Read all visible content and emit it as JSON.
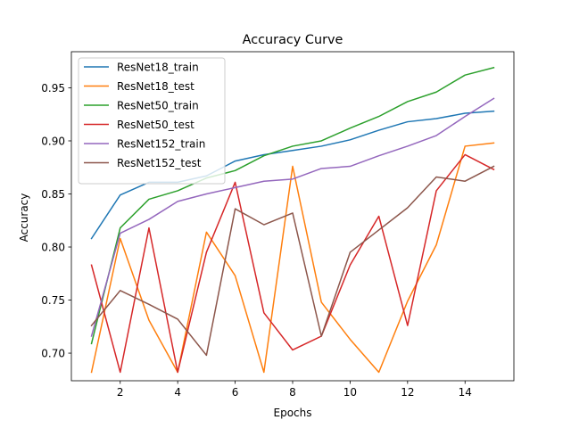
{
  "chart_data": {
    "type": "line",
    "title": "Accuracy Curve",
    "xlabel": "Epochs",
    "ylabel": "Accuracy",
    "xlim": [
      0.3,
      15.7
    ],
    "ylim": [
      0.674,
      0.984
    ],
    "xticks": [
      2,
      4,
      6,
      8,
      10,
      12,
      14
    ],
    "xtick_labels": [
      "2",
      "4",
      "6",
      "8",
      "10",
      "12",
      "14"
    ],
    "yticks": [
      0.7,
      0.75,
      0.8,
      0.85,
      0.9,
      0.95
    ],
    "ytick_labels": [
      "0.70",
      "0.75",
      "0.80",
      "0.85",
      "0.90",
      "0.95"
    ],
    "grid": false,
    "legend_position": "upper-left",
    "x": [
      1,
      2,
      3,
      4,
      5,
      6,
      7,
      8,
      9,
      10,
      11,
      12,
      13,
      14,
      15
    ],
    "series": [
      {
        "name": "ResNet18_train",
        "color": "#1f77b4",
        "values": [
          0.808,
          0.849,
          0.861,
          0.861,
          0.867,
          0.881,
          0.887,
          0.891,
          0.895,
          0.901,
          0.91,
          0.918,
          0.921,
          0.926,
          0.928
        ]
      },
      {
        "name": "ResNet18_test",
        "color": "#ff7f0e",
        "values": [
          0.682,
          0.808,
          0.731,
          0.682,
          0.814,
          0.773,
          0.682,
          0.876,
          0.748,
          0.713,
          0.682,
          0.749,
          0.802,
          0.895,
          0.898
        ]
      },
      {
        "name": "ResNet50_train",
        "color": "#2ca02c",
        "values": [
          0.709,
          0.818,
          0.845,
          0.853,
          0.865,
          0.872,
          0.886,
          0.895,
          0.9,
          0.912,
          0.923,
          0.937,
          0.946,
          0.962,
          0.969
        ]
      },
      {
        "name": "ResNet50_test",
        "color": "#d62728",
        "values": [
          0.783,
          0.682,
          0.818,
          0.682,
          0.795,
          0.861,
          0.738,
          0.703,
          0.716,
          0.783,
          0.829,
          0.726,
          0.853,
          0.887,
          0.873
        ]
      },
      {
        "name": "ResNet152_train",
        "color": "#9467bd",
        "values": [
          0.716,
          0.813,
          0.826,
          0.843,
          0.85,
          0.856,
          0.862,
          0.864,
          0.874,
          0.876,
          0.886,
          0.895,
          0.905,
          0.923,
          0.94
        ]
      },
      {
        "name": "ResNet152_test",
        "color": "#8c564b",
        "values": [
          0.726,
          0.759,
          0.746,
          0.732,
          0.698,
          0.836,
          0.821,
          0.832,
          0.716,
          0.795,
          0.816,
          0.837,
          0.866,
          0.862,
          0.876
        ]
      }
    ]
  }
}
